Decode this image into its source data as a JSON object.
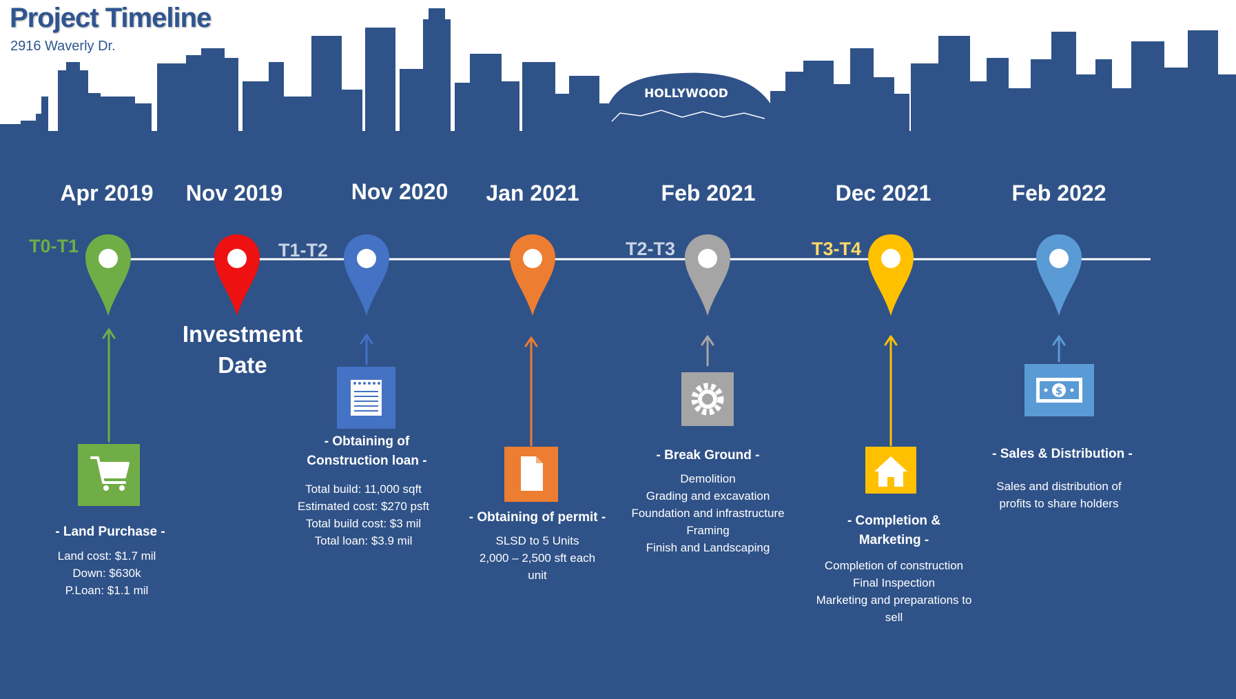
{
  "header": {
    "title": "Project Timeline",
    "subtitle": "2916 Waverly Dr."
  },
  "skyline": {
    "sign_text": "HOLLYWOOD"
  },
  "colors": {
    "background": "#2f5288",
    "timeline_line": "#ffffff",
    "green": "#70ad47",
    "red": "#ee1111",
    "blue": "#4472c4",
    "orange": "#ed7d31",
    "gray": "#a5a5a5",
    "gold": "#ffc000",
    "lightblue": "#5b9bd5"
  },
  "phases": [
    {
      "label": "T0-T1",
      "color": "#70ad47"
    },
    {
      "label": "T1-T2",
      "color": "#c9d4e6"
    },
    {
      "label": "T2-T3",
      "color": "#c9d4e6"
    },
    {
      "label": "T3-T4",
      "color": "#ffd966"
    }
  ],
  "milestones": [
    {
      "date": "Apr 2019",
      "pin_color": "green",
      "icon": "cart-icon",
      "heading": "- Land Purchase -",
      "details": [
        "Land cost: $1.7 mil",
        "Down: $630k",
        "P.Loan: $1.1 mil"
      ]
    },
    {
      "date": "Nov 2019",
      "pin_color": "red",
      "label_lines": [
        "Investment",
        "Date"
      ]
    },
    {
      "date": "Nov 2020",
      "pin_color": "blue",
      "icon": "notepad-icon",
      "heading_lines": [
        "- Obtaining of",
        "Construction loan -"
      ],
      "details": [
        "Total build: 11,000 sqft",
        "Estimated cost: $270 psft",
        "Total build cost: $3 mil",
        "Total loan: $3.9 mil"
      ]
    },
    {
      "date": "Jan 2021",
      "pin_color": "orange",
      "icon": "document-icon",
      "heading": "- Obtaining of permit -",
      "details": [
        "SLSD to 5 Units",
        "2,000 – 2,500 sft  each",
        "unit"
      ]
    },
    {
      "date": "Feb 2021",
      "pin_color": "gray",
      "icon": "gear-icon",
      "heading": "- Break Ground -",
      "details": [
        "Demolition",
        "Grading and excavation",
        "Foundation and infrastructure",
        "Framing",
        "Finish and Landscaping"
      ]
    },
    {
      "date": "Dec 2021",
      "pin_color": "gold",
      "icon": "house-icon",
      "heading_lines": [
        "- Completion &",
        "Marketing -"
      ],
      "details": [
        "Completion of construction",
        "Final Inspection",
        "Marketing and preparations to",
        "sell"
      ]
    },
    {
      "date": "Feb 2022",
      "pin_color": "lightblue",
      "icon": "money-icon",
      "heading": "- Sales & Distribution -",
      "details": [
        "Sales and distribution of",
        "profits to share holders"
      ]
    }
  ]
}
